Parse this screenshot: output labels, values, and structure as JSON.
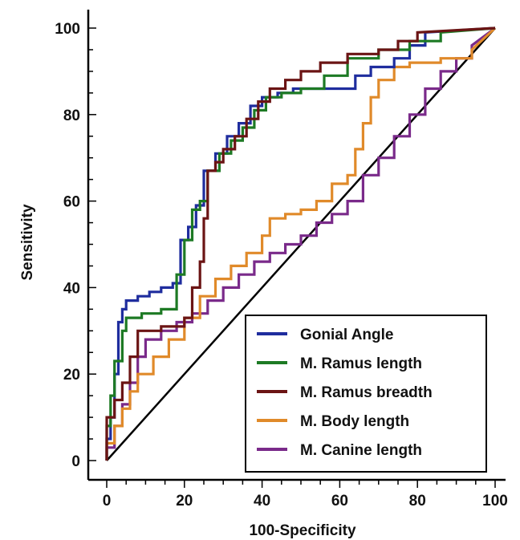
{
  "chart_data": {
    "type": "line",
    "title": "",
    "xlabel": "100-Specificity",
    "ylabel": "Sensitivity",
    "xlim": [
      0,
      100
    ],
    "ylim": [
      0,
      100
    ],
    "xticks": [
      "0",
      "20",
      "40",
      "60",
      "80",
      "100"
    ],
    "yticks": [
      "0",
      "20",
      "40",
      "60",
      "80",
      "100"
    ],
    "grid": false,
    "legend_position": "bottom-right",
    "reference_line": {
      "x": [
        0,
        100
      ],
      "y": [
        0,
        100
      ],
      "color": "#000000"
    },
    "series": [
      {
        "name": "Gonial Angle",
        "color": "#1f2d9e",
        "x": [
          0,
          0,
          1,
          1,
          2,
          2,
          3,
          3,
          4,
          4,
          5,
          5,
          8,
          8,
          11,
          11,
          14,
          14,
          17,
          17,
          19,
          19,
          21,
          21,
          23,
          23,
          25,
          25,
          28,
          28,
          31,
          31,
          34,
          34,
          37,
          37,
          40,
          40,
          44,
          44,
          48,
          48,
          52,
          60,
          64,
          64,
          68,
          68,
          74,
          74,
          78,
          78,
          82,
          82,
          100
        ],
        "y": [
          0,
          5,
          5,
          10,
          10,
          20,
          20,
          32,
          32,
          35,
          35,
          37,
          37,
          38,
          38,
          39,
          39,
          40,
          40,
          41,
          41,
          51,
          51,
          54,
          54,
          59,
          59,
          67,
          67,
          71,
          71,
          75,
          75,
          78,
          78,
          82,
          82,
          84,
          84,
          85,
          85,
          86,
          86,
          86,
          86,
          89,
          89,
          91,
          91,
          93,
          93,
          96,
          96,
          99,
          100
        ]
      },
      {
        "name": "M. Ramus length",
        "color": "#1d7a24",
        "x": [
          0,
          0,
          1,
          1,
          2,
          2,
          4,
          4,
          5,
          5,
          9,
          9,
          14,
          14,
          18,
          18,
          20,
          20,
          22,
          22,
          24,
          24,
          26,
          26,
          29,
          29,
          32,
          32,
          35,
          35,
          38,
          38,
          41,
          41,
          45,
          45,
          50,
          50,
          56,
          56,
          62,
          62,
          70,
          70,
          78,
          78,
          86,
          86,
          100
        ],
        "y": [
          0,
          8,
          8,
          15,
          15,
          23,
          23,
          30,
          30,
          33,
          33,
          34,
          34,
          35,
          35,
          43,
          43,
          51,
          51,
          58,
          58,
          60,
          60,
          67,
          67,
          71,
          71,
          74,
          74,
          77,
          77,
          81,
          81,
          84,
          84,
          85,
          85,
          86,
          86,
          89,
          89,
          93,
          93,
          95,
          95,
          97,
          97,
          99,
          100
        ]
      },
      {
        "name": "M. Ramus breadth",
        "color": "#6b1414",
        "x": [
          0,
          0,
          2,
          2,
          4,
          4,
          6,
          6,
          8,
          8,
          14,
          14,
          20,
          20,
          22,
          22,
          24,
          24,
          25,
          25,
          26,
          26,
          28,
          28,
          30,
          30,
          33,
          33,
          36,
          36,
          39,
          39,
          42,
          42,
          46,
          46,
          50,
          50,
          55,
          55,
          62,
          62,
          70,
          70,
          75,
          75,
          80,
          80,
          100
        ],
        "y": [
          0,
          10,
          10,
          14,
          14,
          18,
          18,
          24,
          24,
          30,
          30,
          31,
          31,
          33,
          33,
          40,
          40,
          46,
          46,
          56,
          56,
          67,
          67,
          69,
          69,
          72,
          72,
          75,
          75,
          79,
          79,
          83,
          83,
          86,
          86,
          88,
          88,
          90,
          90,
          92,
          92,
          94,
          94,
          95,
          95,
          97,
          97,
          99,
          100
        ]
      },
      {
        "name": "M. Body length",
        "color": "#e08a2a",
        "x": [
          0,
          0,
          2,
          2,
          4,
          4,
          6,
          6,
          8,
          8,
          12,
          12,
          16,
          16,
          20,
          20,
          24,
          24,
          28,
          28,
          32,
          32,
          36,
          36,
          40,
          40,
          42,
          42,
          46,
          46,
          50,
          50,
          54,
          54,
          58,
          58,
          62,
          62,
          64,
          64,
          66,
          66,
          68,
          68,
          70,
          70,
          74,
          74,
          78,
          78,
          86,
          86,
          94,
          94,
          100
        ],
        "y": [
          0,
          4,
          4,
          8,
          8,
          12,
          12,
          16,
          16,
          20,
          20,
          24,
          24,
          28,
          28,
          33,
          33,
          38,
          38,
          42,
          42,
          45,
          45,
          48,
          48,
          52,
          52,
          56,
          56,
          57,
          57,
          58,
          58,
          60,
          60,
          64,
          64,
          66,
          66,
          72,
          72,
          78,
          78,
          84,
          84,
          88,
          88,
          91,
          91,
          92,
          92,
          93,
          93,
          95,
          100
        ]
      },
      {
        "name": "M. Canine length",
        "color": "#7a2a8a",
        "x": [
          0,
          0,
          2,
          2,
          4,
          4,
          6,
          6,
          8,
          8,
          10,
          10,
          14,
          14,
          18,
          18,
          22,
          22,
          26,
          26,
          30,
          30,
          34,
          34,
          38,
          38,
          42,
          42,
          46,
          46,
          50,
          50,
          54,
          54,
          58,
          58,
          62,
          62,
          66,
          66,
          70,
          70,
          74,
          74,
          78,
          78,
          82,
          82,
          86,
          86,
          90,
          90,
          94,
          94,
          100
        ],
        "y": [
          0,
          3,
          3,
          8,
          8,
          13,
          13,
          18,
          18,
          24,
          24,
          28,
          28,
          30,
          30,
          32,
          32,
          34,
          34,
          37,
          37,
          40,
          40,
          43,
          43,
          46,
          46,
          48,
          48,
          50,
          50,
          52,
          52,
          55,
          55,
          57,
          57,
          60,
          60,
          66,
          66,
          70,
          70,
          75,
          75,
          80,
          80,
          86,
          86,
          90,
          90,
          93,
          93,
          96,
          100
        ]
      }
    ]
  }
}
